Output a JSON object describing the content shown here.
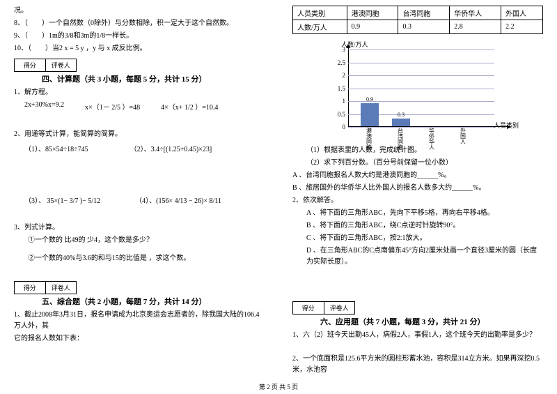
{
  "left": {
    "pre": [
      "况。",
      "8、（　　）一个自然数（0除外）与分数相除，积一定大于这个自然数。",
      "9、（　　）1m的3/8和3m的1/8一样长。",
      "10、（　　）当2 x = 5 y ，y 与 x 成反比例。"
    ],
    "score_labels": [
      "得分",
      "评卷人"
    ],
    "section4_title": "四、计算题（共 3 小题，每题 5 分，共计 15 分）",
    "q1": "1、解方程。",
    "eq_row1": [
      "2x+30%x=9.2",
      "x×（1－ 2/5 ）=48",
      "4×（x+ 1/2 ）=10.4"
    ],
    "q2": "2、用递等式计算，能简算的简算。",
    "eq_row2": [
      "（1）、85×54÷18÷745",
      "（2）、3.4÷[(1.25+0.45)×23]"
    ],
    "eq_row3": [
      "（3）、 35×(1− 3/7 )− 5/12",
      "（4）、(156× 4/13 − 26)× 8/11"
    ],
    "q3": "3、列式计算。",
    "q3a": "①一个数的 比49的 少4，这个数是多少？",
    "q3b": "②一个数的40%与3.6的和与15的比值是 ，求这个数。",
    "section5_title": "五、综合题（共 2 小题，每题 7 分，共计 14 分）",
    "q5_1a": "1、截止2008年3月31日，报名申请成为北京奥运会志愿者的，除我国大陆的106.4万人外，其",
    "q5_1b": "它的报名人数如下表："
  },
  "right": {
    "table": {
      "headers": [
        "人员类别",
        "港澳同胞",
        "台湾同胞",
        "华侨华人",
        "外国人"
      ],
      "row": [
        "人数/万人",
        "0.9",
        "0.3",
        "2.8",
        "2.2"
      ]
    },
    "chart": {
      "ytitle": "人数/万人",
      "ylabels": [
        "3",
        "2.5",
        "2",
        "1.5",
        "1",
        "0.5",
        "0"
      ],
      "bars": [
        {
          "label": "港澳同胞",
          "value": 0.9,
          "text": "0.9"
        },
        {
          "label": "台湾同胞",
          "value": 0.3,
          "text": "0.3"
        },
        {
          "label": "华侨华人",
          "value": null,
          "text": ""
        },
        {
          "label": "外国人",
          "value": null,
          "text": ""
        }
      ],
      "xtitle": "人员类别",
      "ymax": 3
    },
    "sub1": "（1）根据表里的人数，完成统计图。",
    "sub2": "（2）求下列百分数。（百分号前保留一位小数）",
    "subA": "A 、台湾同胞报名人数大约是港澳同胞的______%。",
    "subB": "B 、旅居国外的华侨华人比外国人的报名人数多大约______%。",
    "q2_head": "2、依次解答。",
    "q2A": "A 、将下面的三角形ABC，先向下平移5格，再向右平移4格。",
    "q2B": "B 、将下面的三角形ABC，绕C点逆时针旋转90°。",
    "q2C": "C 、将下面的三角形ABC，按2:1放大。",
    "q2D": "D 、在三角形ABC的C点南偏东45°方向2厘米处画一个直径3厘米的圆（长度为实际长度）。",
    "score_labels": [
      "得分",
      "评卷人"
    ],
    "section6_title": "六、应用题（共 7 小题，每题 3 分，共计 21 分）",
    "q6_1": "1、六（2）班今天出勤45人，病假2人，事假1人，这个班今天的出勤率是多少？",
    "q6_2": "2、一个底面积是125.6平方米的圆柱形蓄水池，容积是314立方米。如果再深挖0.5米，水池容"
  },
  "footer": "第 2 页 共 5 页"
}
